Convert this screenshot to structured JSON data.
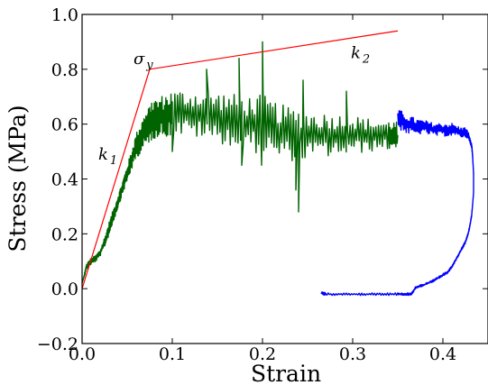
{
  "chart_data": {
    "type": "line",
    "title": "",
    "xlabel": "Strain",
    "ylabel": "Stress (MPa)",
    "xlim": [
      0.0,
      0.45
    ],
    "ylim": [
      -0.2,
      1.0
    ],
    "x_ticks": [
      0.0,
      0.1,
      0.2,
      0.3,
      0.4
    ],
    "x_tick_labels": [
      "0.0",
      "0.1",
      "0.2",
      "0.3",
      "0.4"
    ],
    "y_ticks": [
      -0.2,
      0.0,
      0.2,
      0.4,
      0.6,
      0.8,
      1.0
    ],
    "y_tick_labels": [
      "−0.2",
      "0.0",
      "0.2",
      "0.4",
      "0.6",
      "0.8",
      "1.0"
    ],
    "grid": false,
    "legend": "none",
    "colors": {
      "fit": "#ff0000",
      "loading": "#006400",
      "unloading": "#0000ff",
      "axes": "#000000"
    },
    "series": [
      {
        "key": "loading",
        "kind": "noisy",
        "color": "#006400",
        "x": [
          0.0,
          0.005,
          0.01,
          0.015,
          0.02,
          0.025,
          0.03,
          0.035,
          0.04,
          0.045,
          0.05,
          0.055,
          0.06,
          0.065,
          0.07,
          0.075,
          0.08,
          0.09,
          0.1,
          0.12,
          0.14,
          0.16,
          0.18,
          0.2,
          0.22,
          0.24,
          0.26,
          0.28,
          0.3,
          0.32,
          0.34,
          0.35
        ],
        "y": [
          0.02,
          0.08,
          0.1,
          0.11,
          0.13,
          0.17,
          0.22,
          0.27,
          0.32,
          0.37,
          0.42,
          0.47,
          0.52,
          0.55,
          0.58,
          0.6,
          0.62,
          0.63,
          0.64,
          0.64,
          0.63,
          0.62,
          0.6,
          0.6,
          0.57,
          0.56,
          0.56,
          0.56,
          0.56,
          0.56,
          0.56,
          0.56
        ],
        "noise": [
          0.0,
          0.01,
          0.01,
          0.01,
          0.01,
          0.015,
          0.02,
          0.02,
          0.02,
          0.02,
          0.025,
          0.03,
          0.04,
          0.045,
          0.05,
          0.055,
          0.06,
          0.065,
          0.07,
          0.07,
          0.075,
          0.08,
          0.085,
          0.09,
          0.085,
          0.08,
          0.07,
          0.065,
          0.06,
          0.05,
          0.045,
          0.04
        ],
        "spikes": [
          {
            "x": 0.2,
            "y": 0.9
          },
          {
            "x": 0.199,
            "y": 0.45
          },
          {
            "x": 0.174,
            "y": 0.84
          },
          {
            "x": 0.177,
            "y": 0.45
          },
          {
            "x": 0.24,
            "y": 0.28
          },
          {
            "x": 0.237,
            "y": 0.36
          },
          {
            "x": 0.245,
            "y": 0.76
          },
          {
            "x": 0.293,
            "y": 0.72
          },
          {
            "x": 0.138,
            "y": 0.8
          },
          {
            "x": 0.1,
            "y": 0.5
          }
        ]
      },
      {
        "key": "unloading",
        "kind": "noisy",
        "color": "#0000ff",
        "x": [
          0.35,
          0.36,
          0.37,
          0.38,
          0.39,
          0.4,
          0.41,
          0.42,
          0.425,
          0.428,
          0.43,
          0.432,
          0.433,
          0.434,
          0.434,
          0.432,
          0.43,
          0.428,
          0.425,
          0.42,
          0.415,
          0.41,
          0.405,
          0.4,
          0.39,
          0.38,
          0.37,
          0.365,
          0.36,
          0.35,
          0.33,
          0.31,
          0.29,
          0.27,
          0.265
        ],
        "y": [
          0.62,
          0.6,
          0.59,
          0.59,
          0.58,
          0.58,
          0.58,
          0.57,
          0.57,
          0.56,
          0.54,
          0.52,
          0.48,
          0.42,
          0.35,
          0.27,
          0.23,
          0.2,
          0.17,
          0.14,
          0.11,
          0.08,
          0.06,
          0.05,
          0.03,
          0.015,
          0.005,
          -0.02,
          -0.02,
          -0.02,
          -0.02,
          -0.02,
          -0.02,
          -0.02,
          -0.015
        ],
        "noise": [
          0.03,
          0.03,
          0.025,
          0.02,
          0.02,
          0.02,
          0.02,
          0.015,
          0.015,
          0.01,
          0.008,
          0.006,
          0.005,
          0.004,
          0.004,
          0.004,
          0.004,
          0.004,
          0.004,
          0.004,
          0.004,
          0.004,
          0.004,
          0.004,
          0.004,
          0.004,
          0.004,
          0.004,
          0.004,
          0.004,
          0.004,
          0.004,
          0.004,
          0.004,
          0.004
        ]
      },
      {
        "key": "fit",
        "kind": "line",
        "color": "#ff0000",
        "x": [
          0.0,
          0.075,
          0.35
        ],
        "y": [
          0.0,
          0.8,
          0.94
        ]
      }
    ],
    "annotations": [
      {
        "key": "k1",
        "base": "k",
        "sub": "1",
        "x": 0.018,
        "y": 0.47
      },
      {
        "key": "sigma_y",
        "base": "σ",
        "sub": "y",
        "x": 0.057,
        "y": 0.82
      },
      {
        "key": "k2",
        "base": "k",
        "sub": "2",
        "x": 0.298,
        "y": 0.84
      }
    ]
  }
}
